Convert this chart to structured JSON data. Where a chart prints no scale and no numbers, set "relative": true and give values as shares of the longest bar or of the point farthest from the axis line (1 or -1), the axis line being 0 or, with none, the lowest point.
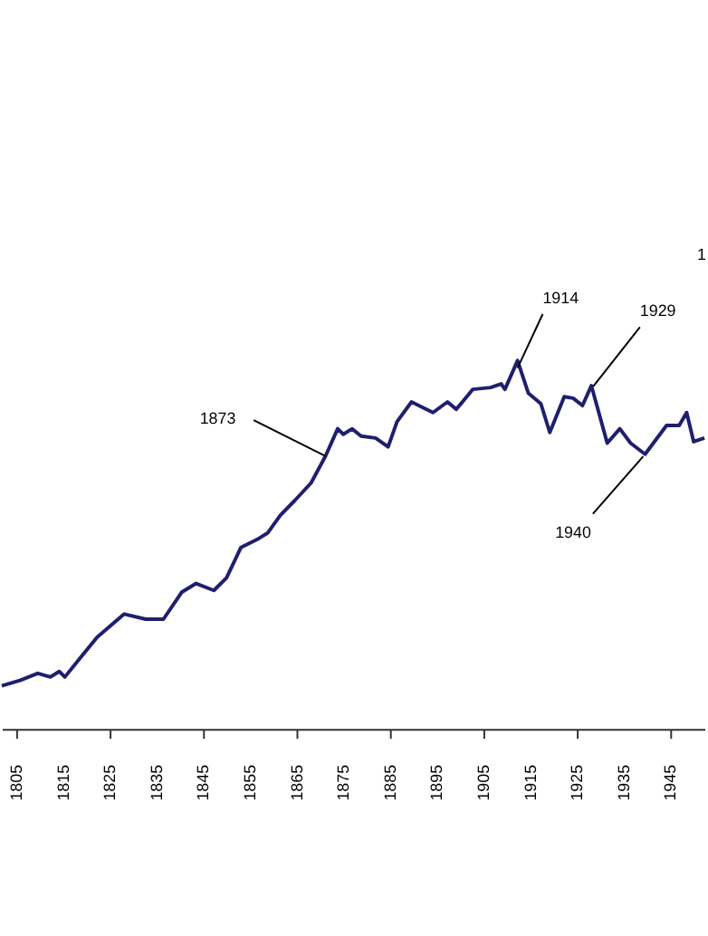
{
  "chart_data": {
    "type": "line",
    "relative": true,
    "color": "#1f1f6e",
    "x": [
      1801.9,
      1805.8,
      1809.6,
      1812.3,
      1814.2,
      1815.4,
      1818.5,
      1822.3,
      1828.1,
      1832.7,
      1836.5,
      1840.4,
      1843.5,
      1847.3,
      1850.0,
      1853.1,
      1856.9,
      1858.8,
      1861.5,
      1864.6,
      1868.1,
      1871.2,
      1873.8,
      1875.0,
      1876.9,
      1878.8,
      1881.9,
      1884.6,
      1886.5,
      1889.6,
      1894.2,
      1897.3,
      1899.2,
      1902.7,
      1906.5,
      1908.8,
      1909.6,
      1912.3,
      1914.6,
      1917.3,
      1919.2,
      1922.3,
      1924.2,
      1926.2,
      1928.1,
      1931.5,
      1934.2,
      1936.5,
      1939.6,
      1944.2,
      1946.9,
      1948.5,
      1950.0,
      1952.3
    ],
    "values": [
      0.117,
      0.132,
      0.151,
      0.141,
      0.156,
      0.141,
      0.19,
      0.249,
      0.312,
      0.298,
      0.298,
      0.371,
      0.395,
      0.376,
      0.41,
      0.493,
      0.517,
      0.532,
      0.58,
      0.62,
      0.668,
      0.741,
      0.815,
      0.8,
      0.815,
      0.795,
      0.79,
      0.766,
      0.834,
      0.888,
      0.859,
      0.888,
      0.868,
      0.922,
      0.927,
      0.937,
      0.922,
      1,
      0.912,
      0.883,
      0.805,
      0.902,
      0.898,
      0.878,
      0.932,
      0.776,
      0.815,
      0.776,
      0.746,
      0.824,
      0.824,
      0.859,
      0.78,
      0.79
    ],
    "xlim": [
      1801.9,
      1952.3
    ],
    "xticks": [
      1805,
      1815,
      1825,
      1835,
      1845,
      1855,
      1865,
      1875,
      1885,
      1895,
      1905,
      1915,
      1925,
      1935,
      1945
    ],
    "annotations": [
      {
        "text": "1873",
        "x": 1871.2,
        "y": 0.741
      },
      {
        "text": "1914",
        "x": 1912.3,
        "y": 0.98
      },
      {
        "text": "1929",
        "x": 1928.5,
        "y": 0.93
      },
      {
        "text": "1940",
        "x": 1939.2,
        "y": 0.74
      },
      "1"
    ]
  }
}
